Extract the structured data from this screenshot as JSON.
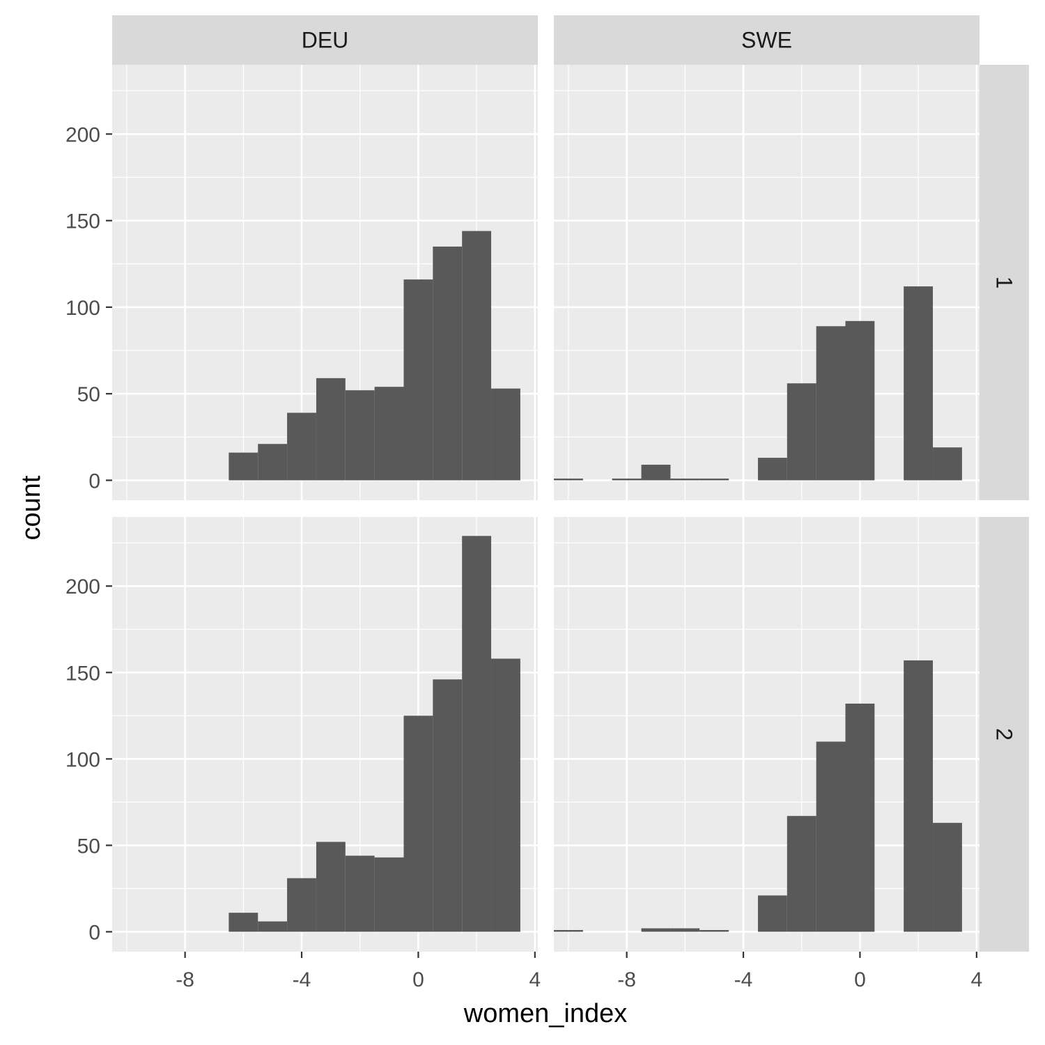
{
  "chart_data": {
    "type": "bar",
    "xlabel": "women_index",
    "ylabel": "count",
    "xlim": [
      -10.5,
      4.1
    ],
    "ylim": [
      -11.5,
      240
    ],
    "x_ticks": [
      -8,
      -4,
      0,
      4
    ],
    "y_ticks": [
      0,
      50,
      100,
      150,
      200
    ],
    "bin_width": 1,
    "column_facets": [
      "DEU",
      "SWE"
    ],
    "row_facets": [
      "1",
      "2"
    ],
    "bar_color": "#595959",
    "panel_background": "#ebebeb",
    "strip_background": "#d9d9d9",
    "panels": [
      {
        "col": "DEU",
        "row": "1",
        "bins": [
          {
            "x0": -6.5,
            "x1": -5.5,
            "count": 16
          },
          {
            "x0": -5.5,
            "x1": -4.5,
            "count": 21
          },
          {
            "x0": -4.5,
            "x1": -3.5,
            "count": 39
          },
          {
            "x0": -3.5,
            "x1": -2.5,
            "count": 59
          },
          {
            "x0": -2.5,
            "x1": -1.5,
            "count": 52
          },
          {
            "x0": -1.5,
            "x1": -0.5,
            "count": 54
          },
          {
            "x0": -0.5,
            "x1": 0.5,
            "count": 116
          },
          {
            "x0": 0.5,
            "x1": 1.5,
            "count": 135
          },
          {
            "x0": 1.5,
            "x1": 2.5,
            "count": 144
          },
          {
            "x0": 2.5,
            "x1": 3.5,
            "count": 53
          }
        ]
      },
      {
        "col": "SWE",
        "row": "1",
        "bins": [
          {
            "x0": -10.5,
            "x1": -9.5,
            "count": 1
          },
          {
            "x0": -8.5,
            "x1": -7.5,
            "count": 1
          },
          {
            "x0": -7.5,
            "x1": -6.5,
            "count": 9
          },
          {
            "x0": -6.5,
            "x1": -5.5,
            "count": 1
          },
          {
            "x0": -5.5,
            "x1": -4.5,
            "count": 1
          },
          {
            "x0": -3.5,
            "x1": -2.5,
            "count": 13
          },
          {
            "x0": -2.5,
            "x1": -1.5,
            "count": 56
          },
          {
            "x0": -1.5,
            "x1": -0.5,
            "count": 89
          },
          {
            "x0": -0.5,
            "x1": 0.5,
            "count": 92
          },
          {
            "x0": 1.5,
            "x1": 2.5,
            "count": 112
          },
          {
            "x0": 2.5,
            "x1": 3.5,
            "count": 19
          }
        ]
      },
      {
        "col": "DEU",
        "row": "2",
        "bins": [
          {
            "x0": -6.5,
            "x1": -5.5,
            "count": 11
          },
          {
            "x0": -5.5,
            "x1": -4.5,
            "count": 6
          },
          {
            "x0": -4.5,
            "x1": -3.5,
            "count": 31
          },
          {
            "x0": -3.5,
            "x1": -2.5,
            "count": 52
          },
          {
            "x0": -2.5,
            "x1": -1.5,
            "count": 44
          },
          {
            "x0": -1.5,
            "x1": -0.5,
            "count": 43
          },
          {
            "x0": -0.5,
            "x1": 0.5,
            "count": 125
          },
          {
            "x0": 0.5,
            "x1": 1.5,
            "count": 146
          },
          {
            "x0": 1.5,
            "x1": 2.5,
            "count": 229
          },
          {
            "x0": 2.5,
            "x1": 3.5,
            "count": 158
          }
        ]
      },
      {
        "col": "SWE",
        "row": "2",
        "bins": [
          {
            "x0": -10.5,
            "x1": -9.5,
            "count": 1
          },
          {
            "x0": -7.5,
            "x1": -6.5,
            "count": 2
          },
          {
            "x0": -6.5,
            "x1": -5.5,
            "count": 2
          },
          {
            "x0": -5.5,
            "x1": -4.5,
            "count": 1
          },
          {
            "x0": -3.5,
            "x1": -2.5,
            "count": 21
          },
          {
            "x0": -2.5,
            "x1": -1.5,
            "count": 67
          },
          {
            "x0": -1.5,
            "x1": -0.5,
            "count": 110
          },
          {
            "x0": -0.5,
            "x1": 0.5,
            "count": 132
          },
          {
            "x0": 1.5,
            "x1": 2.5,
            "count": 157
          },
          {
            "x0": 2.5,
            "x1": 3.5,
            "count": 63
          }
        ]
      }
    ]
  }
}
